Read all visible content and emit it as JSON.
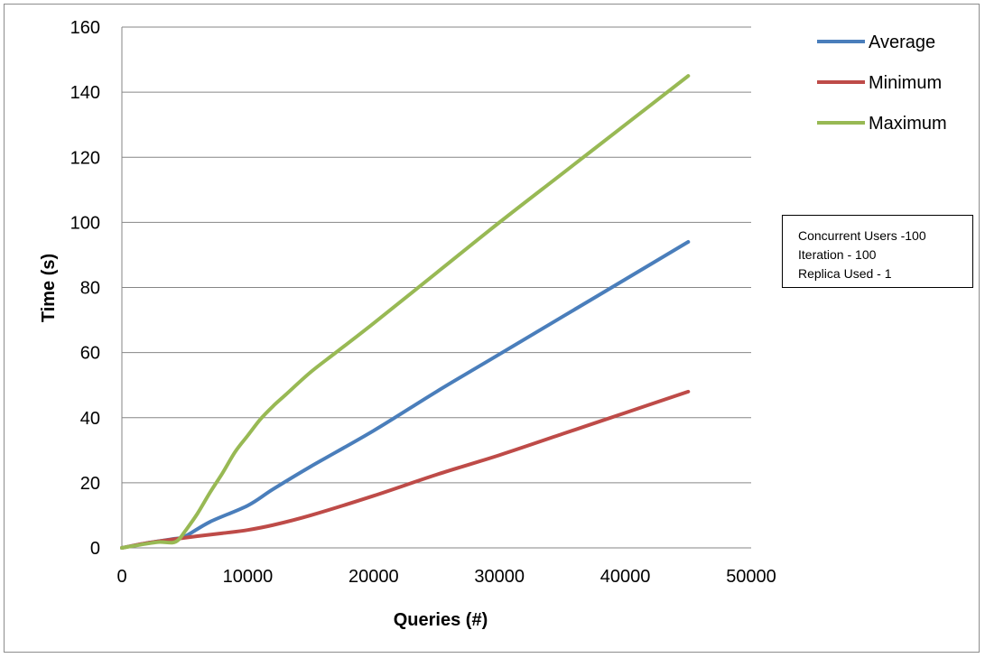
{
  "chart_data": {
    "type": "line",
    "title": "",
    "xlabel": "Queries (#)",
    "ylabel": "Time (s)",
    "xlim": [
      0,
      50000
    ],
    "ylim": [
      0,
      160
    ],
    "xticks": [
      0,
      10000,
      20000,
      30000,
      40000,
      50000
    ],
    "yticks": [
      0,
      20,
      40,
      60,
      80,
      100,
      120,
      140,
      160
    ],
    "grid": "horizontal",
    "legend_position": "top-right",
    "series": [
      {
        "name": "Average",
        "color": "#4a7ebb",
        "x": [
          0,
          2000,
          4000,
          5000,
          7000,
          10000,
          12000,
          15000,
          20000,
          25000,
          30000,
          35000,
          40000,
          45000
        ],
        "y": [
          0,
          1.5,
          2.7,
          3.5,
          8,
          13,
          18,
          25,
          36,
          48,
          59.5,
          71,
          82.5,
          94
        ]
      },
      {
        "name": "Minimum",
        "color": "#be4b48",
        "x": [
          0,
          2000,
          4000,
          6000,
          8000,
          10000,
          12000,
          15000,
          20000,
          25000,
          30000,
          35000,
          40000,
          45000
        ],
        "y": [
          0,
          1.5,
          2.6,
          3.6,
          4.5,
          5.5,
          7,
          10,
          16,
          22.5,
          28.5,
          35,
          41.5,
          48
        ]
      },
      {
        "name": "Maximum",
        "color": "#98b954",
        "x": [
          0,
          2000,
          3000,
          4000,
          4500,
          5000,
          6000,
          7000,
          8000,
          9000,
          10000,
          11000,
          12000,
          13000,
          15000,
          17000,
          20000,
          25000,
          30000,
          35000,
          40000,
          45000
        ],
        "y": [
          0,
          1.3,
          1.8,
          1.6,
          2.5,
          5,
          10.5,
          17,
          23,
          29.5,
          34.5,
          39.5,
          43.5,
          47,
          54,
          60,
          69,
          84.5,
          100,
          115,
          130,
          145
        ]
      }
    ]
  },
  "annotation": {
    "lines": [
      "Concurrent Users  -100",
      "Iteration - 100",
      "Replica Used - 1"
    ]
  }
}
